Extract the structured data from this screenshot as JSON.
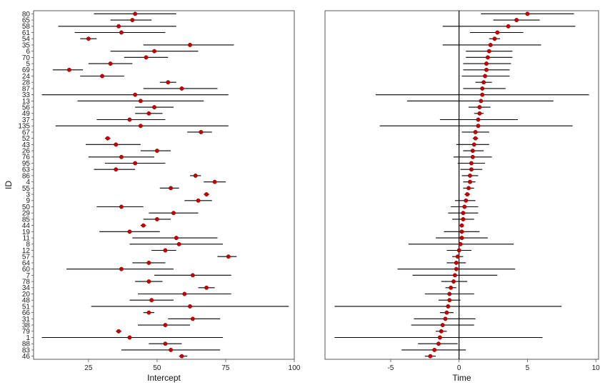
{
  "chart_data": [
    {
      "type": "scatter",
      "title": "",
      "xlabel": "Intercept",
      "ylabel": "ID",
      "xlim": [
        5,
        100
      ],
      "xticks": [
        25,
        50,
        75,
        100
      ],
      "grid": false,
      "point_color": "#cc0000",
      "ids": [
        "80",
        "65",
        "58",
        "61",
        "54",
        "35",
        "6",
        "70",
        "5",
        "69",
        "24",
        "28",
        "87",
        "33",
        "13",
        "56",
        "49",
        "37",
        "135",
        "67",
        "52",
        "43",
        "26",
        "76",
        "95",
        "63",
        "86",
        "4",
        "55",
        "3",
        "9",
        "50",
        "29",
        "85",
        "44",
        "19",
        "11",
        "8",
        "12",
        "57",
        "64",
        "60",
        "7",
        "78",
        "34",
        "20",
        "48",
        "51",
        "66",
        "31",
        "38",
        "79",
        "1",
        "88",
        "83",
        "46"
      ],
      "estimates": [
        42,
        41,
        36,
        37,
        25,
        62,
        49,
        46,
        33,
        18,
        30,
        54,
        59,
        42,
        44,
        49,
        47,
        40,
        44,
        66,
        32,
        35,
        50,
        37,
        42,
        35,
        64,
        71,
        55,
        68,
        65,
        37,
        56,
        50,
        45,
        40,
        57,
        58,
        53,
        76,
        47,
        37,
        63,
        47,
        68,
        60,
        48,
        62,
        47,
        63,
        53,
        36,
        40,
        53,
        55,
        59
      ],
      "lower": [
        27,
        33,
        14,
        20,
        22,
        45,
        33,
        38,
        25,
        12,
        22,
        51,
        45,
        8,
        21,
        42,
        42,
        28,
        13,
        61,
        31,
        24,
        44,
        25,
        31,
        27,
        62,
        67,
        51,
        67,
        60,
        28,
        47,
        45,
        44,
        29,
        41,
        40,
        48,
        72,
        41,
        17,
        49,
        42,
        65,
        43,
        40,
        26,
        45,
        54,
        43,
        35,
        8,
        47,
        37,
        58
      ],
      "upper": [
        57,
        48,
        57,
        53,
        28,
        78,
        65,
        54,
        41,
        23,
        38,
        57,
        72,
        76,
        67,
        56,
        52,
        53,
        76,
        70,
        33,
        44,
        55,
        49,
        53,
        42,
        66,
        75,
        58,
        69,
        70,
        45,
        65,
        55,
        46,
        51,
        72,
        74,
        57,
        79,
        53,
        56,
        77,
        52,
        71,
        77,
        56,
        98,
        49,
        73,
        62,
        37,
        74,
        59,
        73,
        61
      ]
    },
    {
      "type": "scatter",
      "title": "",
      "xlabel": "Time",
      "ylabel": "",
      "xlim": [
        -9.8,
        10.2
      ],
      "xticks": [
        -5,
        0,
        5,
        10
      ],
      "reference_line_x": 0,
      "grid": false,
      "point_color": "#cc0000",
      "ids": [
        "80",
        "65",
        "58",
        "61",
        "54",
        "35",
        "6",
        "70",
        "5",
        "69",
        "24",
        "28",
        "87",
        "33",
        "13",
        "56",
        "49",
        "37",
        "135",
        "67",
        "52",
        "43",
        "26",
        "76",
        "95",
        "63",
        "86",
        "4",
        "55",
        "3",
        "9",
        "50",
        "29",
        "85",
        "44",
        "19",
        "11",
        "8",
        "12",
        "57",
        "64",
        "60",
        "7",
        "78",
        "34",
        "20",
        "48",
        "51",
        "66",
        "31",
        "38",
        "79",
        "1",
        "88",
        "83",
        "46"
      ],
      "estimates": [
        5.0,
        4.2,
        3.6,
        2.8,
        2.6,
        2.3,
        2.2,
        2.1,
        2.0,
        2.0,
        1.9,
        1.8,
        1.7,
        1.7,
        1.6,
        1.5,
        1.5,
        1.4,
        1.4,
        1.2,
        1.2,
        1.1,
        1.0,
        1.0,
        0.9,
        0.9,
        0.8,
        0.8,
        0.7,
        0.6,
        0.5,
        0.4,
        0.3,
        0.3,
        0.2,
        0.2,
        0.2,
        0.1,
        0.0,
        -0.1,
        -0.2,
        -0.2,
        -0.3,
        -0.4,
        -0.6,
        -0.7,
        -0.7,
        -0.8,
        -0.9,
        -1.0,
        -1.2,
        -1.3,
        -1.4,
        -1.5,
        -1.8,
        -2.1
      ],
      "lower": [
        1.6,
        2.5,
        -1.2,
        0.8,
        2.2,
        -1.2,
        0.5,
        0.5,
        0.3,
        0.3,
        0.2,
        1.2,
        0.3,
        -6.1,
        -3.8,
        0.7,
        1.1,
        -1.4,
        -5.8,
        0.2,
        1.0,
        -0.2,
        0.3,
        -0.4,
        -0.1,
        0.1,
        0.2,
        0.3,
        0.3,
        0.4,
        -0.3,
        -0.6,
        -0.8,
        -0.5,
        0.1,
        -1.1,
        -1.7,
        -3.7,
        -0.9,
        -0.5,
        -0.9,
        -4.5,
        -3.4,
        -1.3,
        -1.0,
        -2.5,
        -1.5,
        -9.1,
        -1.4,
        -3.3,
        -3.5,
        -1.7,
        -9.1,
        -3.0,
        -4.2,
        -2.5
      ],
      "upper": [
        8.4,
        5.9,
        8.5,
        4.7,
        3.0,
        6.0,
        3.9,
        3.9,
        3.8,
        3.7,
        3.7,
        2.4,
        3.4,
        9.5,
        6.9,
        2.3,
        1.8,
        4.3,
        8.3,
        2.2,
        1.4,
        2.2,
        1.8,
        2.4,
        1.9,
        1.7,
        1.4,
        1.2,
        1.1,
        0.8,
        1.2,
        1.4,
        1.4,
        1.1,
        0.3,
        1.5,
        2.1,
        4.0,
        0.9,
        0.3,
        0.5,
        4.1,
        2.8,
        0.6,
        -0.2,
        1.1,
        0.1,
        7.5,
        -0.4,
        1.2,
        1.1,
        -0.9,
        6.1,
        -0.1,
        0.5,
        -1.7
      ]
    }
  ]
}
